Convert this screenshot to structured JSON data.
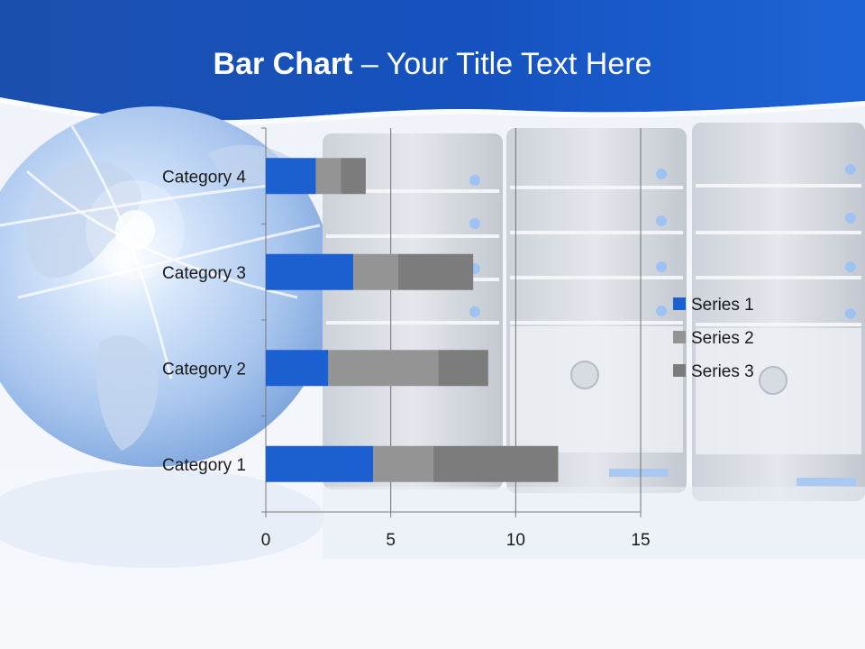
{
  "title": {
    "bold": "Bar Chart",
    "rest": " – Your Title Text Here"
  },
  "colors": {
    "series_1": "#1c5fd1",
    "series_2": "#949494",
    "series_3": "#7c7c7c",
    "header": "#1a56c4"
  },
  "chart_data": {
    "type": "bar",
    "orientation": "horizontal",
    "stacked": true,
    "categories": [
      "Category 1",
      "Category 2",
      "Category 3",
      "Category 4"
    ],
    "series": [
      {
        "name": "Series 1",
        "values": [
          4.3,
          2.5,
          3.5,
          2.0
        ]
      },
      {
        "name": "Series 2",
        "values": [
          2.4,
          4.4,
          1.8,
          1.0
        ]
      },
      {
        "name": "Series 3",
        "values": [
          5.0,
          2.0,
          3.0,
          1.0
        ]
      }
    ],
    "xlim": [
      0,
      15
    ],
    "xticks": [
      0,
      5,
      10,
      15
    ],
    "grid": "vertical",
    "legend": "right"
  }
}
